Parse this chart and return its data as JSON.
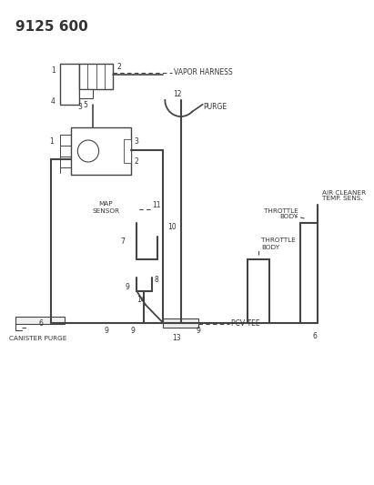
{
  "title": "9125 600",
  "bg": "#ffffff",
  "lc": "#444444",
  "tc": "#333333",
  "figsize": [
    4.11,
    5.33
  ],
  "dpi": 100,
  "labels": {
    "vapor_harness": "VAPOR HARNESS",
    "map_sensor": "MAP\nSENSOR",
    "purge": "PURGE",
    "air_cleaner": "AIR CLEANER\nTEMP. SENS.",
    "throttle_body_1": "THROTTLE\nBODY",
    "throttle_body_2": "THROTTLE\nBODY",
    "pcv_tee": "PCV TEE",
    "canister_purge": "CANISTER PURGE"
  }
}
